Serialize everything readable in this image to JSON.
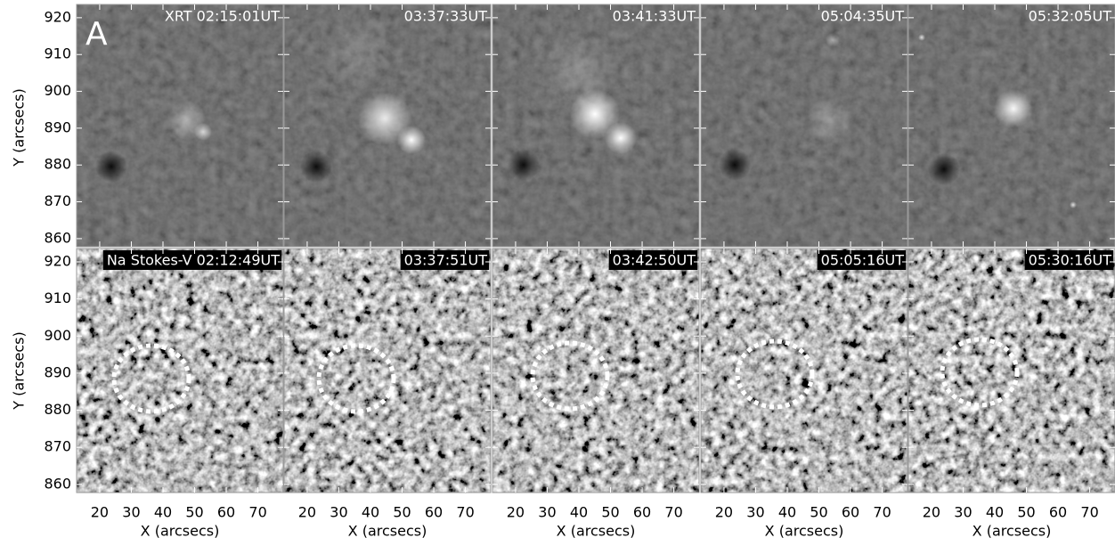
{
  "figure_label": "A",
  "rows": [
    {
      "panels": [
        {
          "title": "XRT 02:15:01UT"
        },
        {
          "title": "03:37:33UT"
        },
        {
          "title": "03:41:33UT"
        },
        {
          "title": "05:04:35UT"
        },
        {
          "title": "05:32:05UT"
        }
      ]
    },
    {
      "panels": [
        {
          "title": "Na Stokes-V 02:12:49UT"
        },
        {
          "title": "03:37:51UT"
        },
        {
          "title": "03:42:50UT"
        },
        {
          "title": "05:05:16UT"
        },
        {
          "title": "05:30:16UT"
        }
      ]
    }
  ],
  "x_axis": {
    "label": "X (arcsecs)",
    "xlim": [
      12.7,
      78
    ],
    "xticks": [
      20,
      30,
      40,
      50,
      60,
      70
    ]
  },
  "y_axis": {
    "label": "Y (arcsecs)",
    "ylim": [
      857.8,
      923.6
    ],
    "yticks": [
      860,
      870,
      880,
      890,
      900,
      910,
      920
    ]
  }
}
